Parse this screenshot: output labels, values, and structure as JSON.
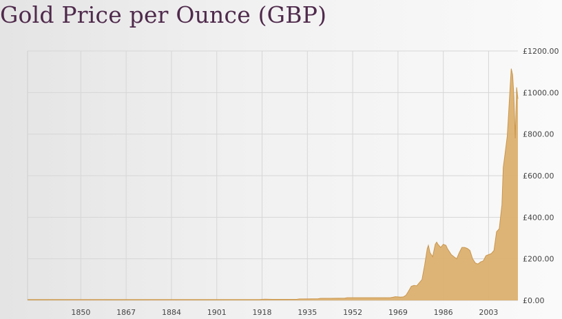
{
  "page_title": "Gold Price per Ounce (GBP)",
  "chart_data": {
    "type": "area",
    "title": "Gold Price per Ounce (GBP)",
    "xlabel": "",
    "ylabel": "",
    "xlim": [
      1830,
      2014
    ],
    "ylim": [
      0,
      1200
    ],
    "x_ticks": [
      1850,
      1867,
      1884,
      1901,
      1918,
      1935,
      1952,
      1969,
      1986,
      2003
    ],
    "y_ticks": [
      "£0.00",
      "£200.00",
      "£400.00",
      "£600.00",
      "£800.00",
      "£1000.00",
      "£1200.00"
    ],
    "y_tick_values": [
      0,
      200,
      400,
      600,
      800,
      1000,
      1200
    ],
    "grid": true,
    "fill_color": "#dcb06f",
    "line_color": "#c9964d",
    "series": [
      {
        "x": [
          1830,
          1850,
          1870,
          1900,
          1914,
          1917,
          1919,
          1922,
          1931,
          1932,
          1934,
          1939,
          1940,
          1944,
          1949,
          1950,
          1960,
          1966,
          1967,
          1968,
          1970,
          1971,
          1972,
          1973,
          1974,
          1975,
          1976,
          1977,
          1978,
          1979,
          1980,
          1980.4,
          1981,
          1982,
          1983,
          1983.5,
          1984,
          1985,
          1986,
          1987,
          1987.5,
          1988,
          1989,
          1990,
          1991,
          1992,
          1993,
          1994,
          1995,
          1996,
          1997,
          1998,
          1999,
          2000,
          2001,
          2002,
          2003,
          2004,
          2005,
          2006,
          2007,
          2008,
          2008.5,
          2009,
          2010,
          2010.5,
          2011,
          2011.5,
          2012,
          2012.5,
          2013,
          2013.5,
          2014
        ],
        "y": [
          4,
          4,
          4,
          4,
          4,
          4,
          6,
          5,
          5,
          7,
          7,
          8,
          10,
          10,
          11,
          13,
          13,
          13,
          15,
          18,
          16,
          17,
          25,
          45,
          68,
          72,
          70,
          85,
          100,
          170,
          250,
          265,
          230,
          210,
          270,
          280,
          270,
          255,
          270,
          265,
          250,
          240,
          220,
          210,
          200,
          230,
          255,
          255,
          250,
          240,
          200,
          180,
          175,
          185,
          190,
          215,
          220,
          225,
          240,
          330,
          345,
          460,
          640,
          690,
          790,
          900,
          1010,
          1115,
          1085,
          980,
          780,
          1025,
          970
        ]
      }
    ]
  }
}
